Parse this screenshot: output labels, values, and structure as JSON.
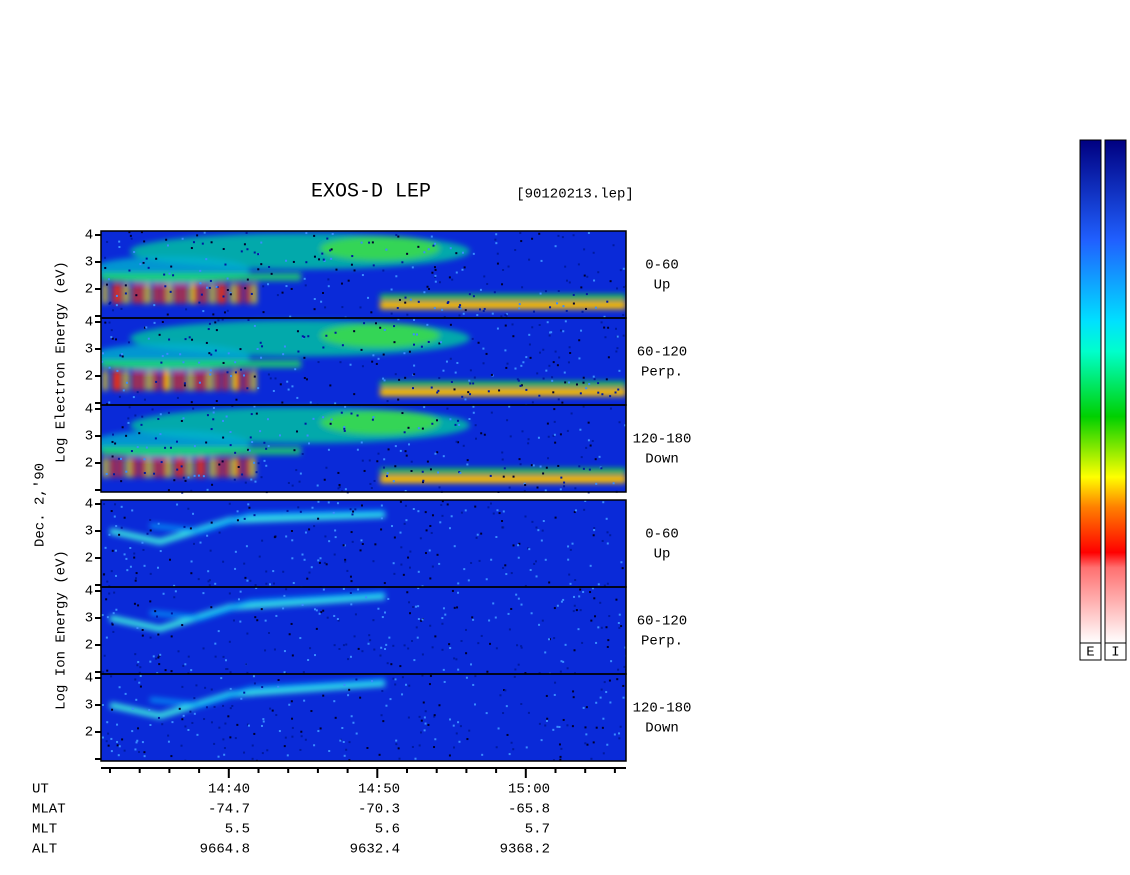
{
  "title": "EXOS-D LEP",
  "file": "[90120213.lep]",
  "date": "Dec. 2,'90",
  "electron": {
    "axis_label": "Log  Electron  Energy  (eV)",
    "panels": [
      {
        "yticks": [
          "4",
          "3",
          "2"
        ],
        "channel": [
          "0-60",
          "Up"
        ]
      },
      {
        "yticks": [
          "4",
          "3",
          "2"
        ],
        "channel": [
          "60-120",
          "Perp."
        ]
      },
      {
        "yticks": [
          "4",
          "3",
          "2"
        ],
        "channel": [
          "120-180",
          "Down"
        ]
      }
    ]
  },
  "ion": {
    "axis_label": "Log  Ion  Energy  (eV)",
    "panels": [
      {
        "yticks": [
          "4",
          "3",
          "2"
        ],
        "channel": [
          "0-60",
          "Up"
        ]
      },
      {
        "yticks": [
          "4",
          "3",
          "2"
        ],
        "channel": [
          "60-120",
          "Perp."
        ]
      },
      {
        "yticks": [
          "4",
          "3",
          "2"
        ],
        "channel": [
          "120-180",
          "Down"
        ]
      }
    ]
  },
  "time_axis": {
    "rows": [
      {
        "name": "UT",
        "values": [
          "14:40",
          "14:50",
          "15:00"
        ]
      },
      {
        "name": "MLAT",
        "values": [
          "-74.7",
          "-70.3",
          "-65.8"
        ]
      },
      {
        "name": "MLT",
        "values": [
          "5.5",
          "5.6",
          "5.7"
        ]
      },
      {
        "name": "ALT",
        "values": [
          "9664.8",
          "9632.4",
          "9368.2"
        ]
      }
    ]
  },
  "colorbars": [
    "E",
    "I"
  ]
}
